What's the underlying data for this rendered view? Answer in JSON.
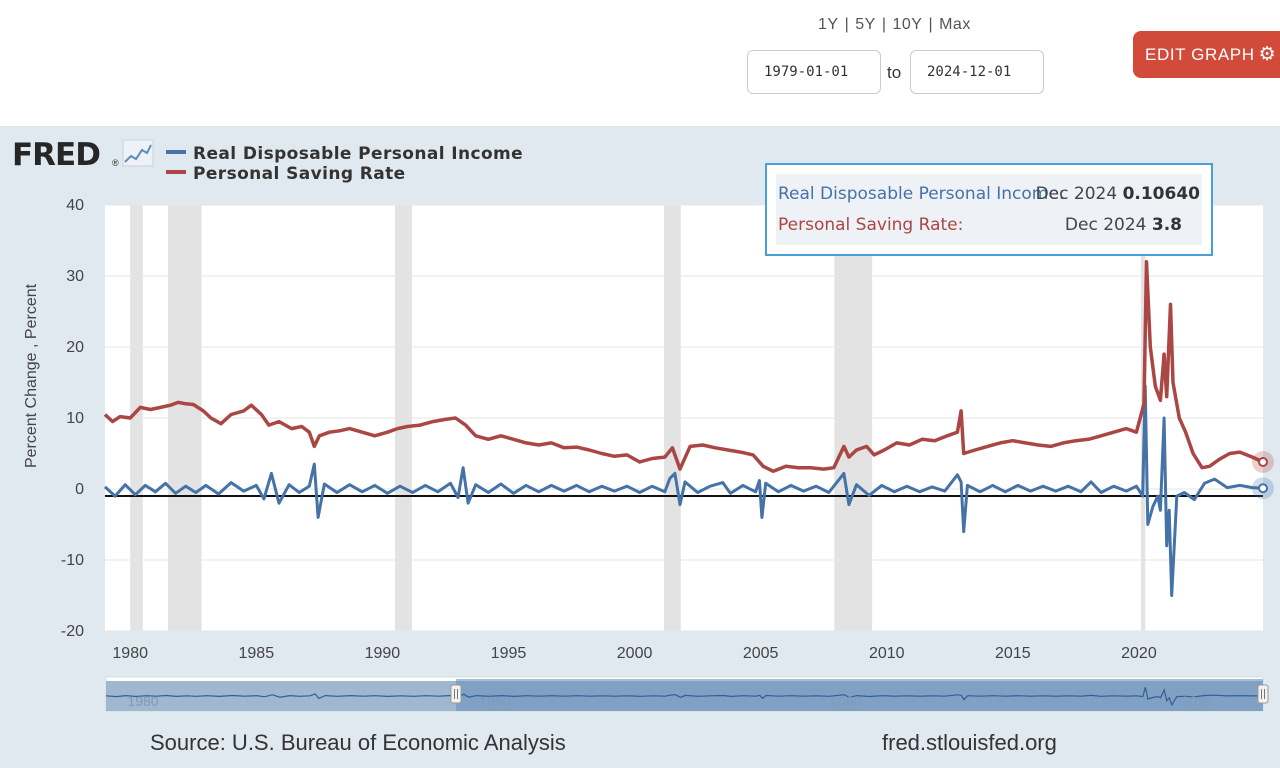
{
  "controls": {
    "range_options": [
      "1Y",
      "5Y",
      "10Y",
      "Max"
    ],
    "start_date": "1979-01-01",
    "to_label": "to",
    "end_date": "2024-12-01",
    "edit_button_label": "EDIT GRAPH",
    "edit_icon": "gear-icon"
  },
  "brand": {
    "logo_text": "FRED",
    "logo_mark": "®"
  },
  "tooltip": {
    "rows": [
      {
        "label": "Real Disposable Personal Income:",
        "date": "Dec 2024",
        "value": "0.10640"
      },
      {
        "label": "Personal Saving Rate:",
        "date": "Dec 2024",
        "value": "3.8"
      }
    ]
  },
  "footer": {
    "source": "Source: U.S. Bureau of Economic Analysis",
    "site": "fred.stlouisfed.org"
  },
  "colors": {
    "income": "#4572a7",
    "saving": "#aa4643",
    "recession": "#e3e3e3",
    "accent": "#d24a3a",
    "tooltip_border": "#4a9fd8"
  },
  "chart_data": {
    "type": "line",
    "title": "",
    "xlabel": "",
    "ylabel": "Percent Change , Percent",
    "xlim": [
      1979.0,
      2024.92
    ],
    "ylim": [
      -20,
      40
    ],
    "y_ticks": [
      -20,
      -10,
      0,
      10,
      20,
      30,
      40
    ],
    "x_ticks": [
      1980,
      1985,
      1990,
      1995,
      2000,
      2005,
      2010,
      2015,
      2020
    ],
    "recessions": [
      [
        1980.0,
        1980.5
      ],
      [
        1981.5,
        1982.83
      ],
      [
        1990.5,
        1991.17
      ],
      [
        2001.17,
        2001.83
      ],
      [
        2007.92,
        2009.42
      ],
      [
        2020.08,
        2020.25
      ]
    ],
    "navigator_labels": [
      "1980",
      "1980",
      "2000",
      "2020"
    ],
    "series": [
      {
        "name": "Real Disposable Personal Income",
        "color": "#4572a7",
        "points": [
          [
            1979.0,
            0.3
          ],
          [
            1979.4,
            -1.0
          ],
          [
            1979.8,
            0.6
          ],
          [
            1980.2,
            -0.8
          ],
          [
            1980.6,
            0.5
          ],
          [
            1981.0,
            -0.4
          ],
          [
            1981.4,
            0.8
          ],
          [
            1981.8,
            -0.6
          ],
          [
            1982.2,
            0.4
          ],
          [
            1982.6,
            -0.5
          ],
          [
            1983.0,
            0.5
          ],
          [
            1983.5,
            -0.7
          ],
          [
            1984.0,
            0.9
          ],
          [
            1984.5,
            -0.3
          ],
          [
            1985.0,
            0.5
          ],
          [
            1985.3,
            -1.4
          ],
          [
            1985.6,
            2.2
          ],
          [
            1985.9,
            -2.0
          ],
          [
            1986.3,
            0.6
          ],
          [
            1986.7,
            -0.5
          ],
          [
            1987.1,
            0.4
          ],
          [
            1987.3,
            3.5
          ],
          [
            1987.45,
            -4.0
          ],
          [
            1987.7,
            0.7
          ],
          [
            1988.2,
            -0.5
          ],
          [
            1988.7,
            0.6
          ],
          [
            1989.2,
            -0.4
          ],
          [
            1989.7,
            0.5
          ],
          [
            1990.2,
            -0.6
          ],
          [
            1990.7,
            0.4
          ],
          [
            1991.2,
            -0.5
          ],
          [
            1991.7,
            0.5
          ],
          [
            1992.2,
            -0.4
          ],
          [
            1992.7,
            0.8
          ],
          [
            1993.0,
            -1.2
          ],
          [
            1993.2,
            3.0
          ],
          [
            1993.4,
            -2.0
          ],
          [
            1993.7,
            0.6
          ],
          [
            1994.2,
            -0.5
          ],
          [
            1994.7,
            0.7
          ],
          [
            1995.2,
            -0.6
          ],
          [
            1995.7,
            0.5
          ],
          [
            1996.2,
            -0.4
          ],
          [
            1996.7,
            0.5
          ],
          [
            1997.2,
            -0.3
          ],
          [
            1997.7,
            0.5
          ],
          [
            1998.2,
            -0.4
          ],
          [
            1998.7,
            0.4
          ],
          [
            1999.2,
            -0.3
          ],
          [
            1999.7,
            0.4
          ],
          [
            2000.2,
            -0.5
          ],
          [
            2000.7,
            0.4
          ],
          [
            2001.2,
            -0.4
          ],
          [
            2001.4,
            1.5
          ],
          [
            2001.6,
            2.2
          ],
          [
            2001.8,
            -2.2
          ],
          [
            2002.0,
            1.0
          ],
          [
            2002.5,
            -0.5
          ],
          [
            2003.0,
            0.4
          ],
          [
            2003.5,
            0.9
          ],
          [
            2003.8,
            -0.6
          ],
          [
            2004.3,
            0.5
          ],
          [
            2004.8,
            -0.4
          ],
          [
            2004.95,
            1.2
          ],
          [
            2005.05,
            -4.0
          ],
          [
            2005.2,
            0.8
          ],
          [
            2005.7,
            -0.4
          ],
          [
            2006.2,
            0.5
          ],
          [
            2006.7,
            -0.3
          ],
          [
            2007.2,
            0.4
          ],
          [
            2007.7,
            -0.5
          ],
          [
            2008.3,
            2.2
          ],
          [
            2008.5,
            -2.2
          ],
          [
            2008.8,
            0.6
          ],
          [
            2009.3,
            -0.9
          ],
          [
            2009.8,
            0.5
          ],
          [
            2010.3,
            -0.4
          ],
          [
            2010.8,
            0.4
          ],
          [
            2011.3,
            -0.4
          ],
          [
            2011.8,
            0.3
          ],
          [
            2012.3,
            -0.3
          ],
          [
            2012.8,
            2.0
          ],
          [
            2012.95,
            1.0
          ],
          [
            2013.05,
            -6.0
          ],
          [
            2013.2,
            0.5
          ],
          [
            2013.7,
            -0.4
          ],
          [
            2014.2,
            0.5
          ],
          [
            2014.7,
            -0.4
          ],
          [
            2015.2,
            0.5
          ],
          [
            2015.7,
            -0.3
          ],
          [
            2016.2,
            0.4
          ],
          [
            2016.7,
            -0.3
          ],
          [
            2017.2,
            0.4
          ],
          [
            2017.7,
            -0.4
          ],
          [
            2018.1,
            1.0
          ],
          [
            2018.5,
            -0.5
          ],
          [
            2019.0,
            0.4
          ],
          [
            2019.5,
            -0.3
          ],
          [
            2019.9,
            0.4
          ],
          [
            2020.15,
            -1.0
          ],
          [
            2020.25,
            14.5
          ],
          [
            2020.35,
            -5.0
          ],
          [
            2020.55,
            -2.5
          ],
          [
            2020.75,
            -1.0
          ],
          [
            2020.85,
            -3.0
          ],
          [
            2021.0,
            10.0
          ],
          [
            2021.1,
            -8.0
          ],
          [
            2021.2,
            -3.0
          ],
          [
            2021.3,
            -15.0
          ],
          [
            2021.5,
            -1.0
          ],
          [
            2021.8,
            -0.5
          ],
          [
            2022.2,
            -1.5
          ],
          [
            2022.6,
            0.8
          ],
          [
            2023.0,
            1.4
          ],
          [
            2023.5,
            0.2
          ],
          [
            2024.0,
            0.5
          ],
          [
            2024.5,
            0.2
          ],
          [
            2024.92,
            0.1064
          ]
        ]
      },
      {
        "name": "Personal Saving Rate",
        "color": "#aa4643",
        "points": [
          [
            1979.0,
            10.5
          ],
          [
            1979.3,
            9.5
          ],
          [
            1979.6,
            10.2
          ],
          [
            1980.0,
            10.0
          ],
          [
            1980.4,
            11.5
          ],
          [
            1980.8,
            11.2
          ],
          [
            1981.2,
            11.5
          ],
          [
            1981.6,
            11.8
          ],
          [
            1981.9,
            12.2
          ],
          [
            1982.2,
            12.0
          ],
          [
            1982.5,
            11.9
          ],
          [
            1982.9,
            11.0
          ],
          [
            1983.2,
            10.0
          ],
          [
            1983.6,
            9.2
          ],
          [
            1984.0,
            10.5
          ],
          [
            1984.5,
            11.0
          ],
          [
            1984.8,
            11.8
          ],
          [
            1985.2,
            10.5
          ],
          [
            1985.5,
            9.0
          ],
          [
            1985.9,
            9.5
          ],
          [
            1986.4,
            8.5
          ],
          [
            1986.8,
            8.8
          ],
          [
            1987.1,
            8.0
          ],
          [
            1987.3,
            6.0
          ],
          [
            1987.5,
            7.5
          ],
          [
            1987.9,
            8.0
          ],
          [
            1988.3,
            8.2
          ],
          [
            1988.7,
            8.5
          ],
          [
            1989.2,
            8.0
          ],
          [
            1989.7,
            7.5
          ],
          [
            1990.2,
            8.0
          ],
          [
            1990.6,
            8.5
          ],
          [
            1991.0,
            8.8
          ],
          [
            1991.5,
            9.0
          ],
          [
            1992.0,
            9.5
          ],
          [
            1992.5,
            9.8
          ],
          [
            1992.9,
            10.0
          ],
          [
            1993.3,
            9.0
          ],
          [
            1993.7,
            7.5
          ],
          [
            1994.2,
            7.0
          ],
          [
            1994.7,
            7.5
          ],
          [
            1995.2,
            7.0
          ],
          [
            1995.7,
            6.5
          ],
          [
            1996.2,
            6.2
          ],
          [
            1996.7,
            6.5
          ],
          [
            1997.2,
            5.8
          ],
          [
            1997.7,
            5.9
          ],
          [
            1998.2,
            5.5
          ],
          [
            1998.7,
            5.0
          ],
          [
            1999.2,
            4.6
          ],
          [
            1999.7,
            4.8
          ],
          [
            2000.2,
            3.8
          ],
          [
            2000.7,
            4.3
          ],
          [
            2001.2,
            4.5
          ],
          [
            2001.5,
            5.8
          ],
          [
            2001.8,
            2.8
          ],
          [
            2002.2,
            6.0
          ],
          [
            2002.7,
            6.2
          ],
          [
            2003.2,
            5.8
          ],
          [
            2003.7,
            5.5
          ],
          [
            2004.2,
            5.2
          ],
          [
            2004.7,
            4.8
          ],
          [
            2005.1,
            3.2
          ],
          [
            2005.5,
            2.5
          ],
          [
            2006.0,
            3.2
          ],
          [
            2006.5,
            3.0
          ],
          [
            2007.0,
            3.0
          ],
          [
            2007.5,
            2.8
          ],
          [
            2007.9,
            3.0
          ],
          [
            2008.3,
            6.0
          ],
          [
            2008.5,
            4.5
          ],
          [
            2008.8,
            5.5
          ],
          [
            2009.2,
            6.0
          ],
          [
            2009.5,
            4.8
          ],
          [
            2009.9,
            5.5
          ],
          [
            2010.4,
            6.5
          ],
          [
            2010.9,
            6.2
          ],
          [
            2011.4,
            7.0
          ],
          [
            2011.9,
            6.8
          ],
          [
            2012.4,
            7.5
          ],
          [
            2012.8,
            8.0
          ],
          [
            2012.95,
            11.0
          ],
          [
            2013.05,
            5.0
          ],
          [
            2013.5,
            5.5
          ],
          [
            2014.0,
            6.0
          ],
          [
            2014.5,
            6.5
          ],
          [
            2015.0,
            6.8
          ],
          [
            2015.5,
            6.5
          ],
          [
            2016.0,
            6.2
          ],
          [
            2016.5,
            6.0
          ],
          [
            2017.0,
            6.5
          ],
          [
            2017.5,
            6.8
          ],
          [
            2018.0,
            7.0
          ],
          [
            2018.5,
            7.5
          ],
          [
            2019.0,
            8.0
          ],
          [
            2019.5,
            8.5
          ],
          [
            2019.9,
            8.0
          ],
          [
            2020.2,
            12.0
          ],
          [
            2020.3,
            32.0
          ],
          [
            2020.45,
            20.0
          ],
          [
            2020.65,
            14.5
          ],
          [
            2020.85,
            12.5
          ],
          [
            2021.0,
            19.0
          ],
          [
            2021.1,
            13.0
          ],
          [
            2021.25,
            26.0
          ],
          [
            2021.35,
            15.0
          ],
          [
            2021.6,
            10.0
          ],
          [
            2021.85,
            8.0
          ],
          [
            2022.15,
            5.0
          ],
          [
            2022.5,
            3.0
          ],
          [
            2022.8,
            3.2
          ],
          [
            2023.2,
            4.2
          ],
          [
            2023.6,
            5.0
          ],
          [
            2024.0,
            5.2
          ],
          [
            2024.5,
            4.5
          ],
          [
            2024.92,
            3.8
          ]
        ]
      }
    ]
  }
}
